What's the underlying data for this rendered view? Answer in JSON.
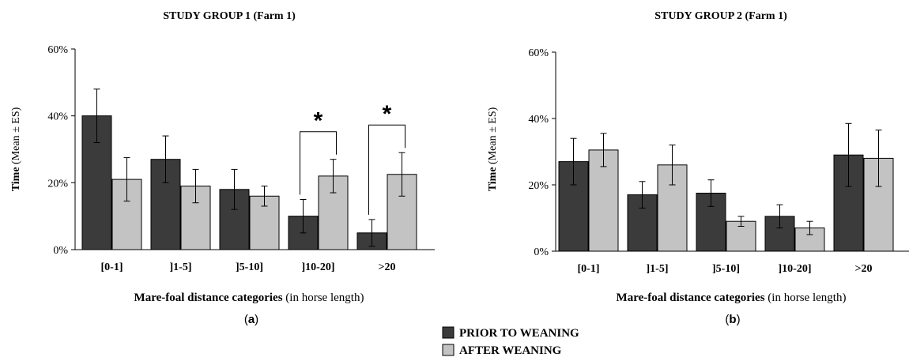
{
  "chart_data": [
    {
      "type": "bar",
      "title": "STUDY GROUP 1 (Farm 1)",
      "panel_label": "a",
      "ylabel_bold": "Time",
      "ylabel_rest": "(Mean ± ES)",
      "xlabel_bold": "Mare-foal distance categories",
      "xlabel_rest": "(in horse length)",
      "categories": [
        "[0-1]",
        "]1-5]",
        "]5-10]",
        "]10-20]",
        ">20"
      ],
      "yticks": [
        "0%",
        "20%",
        "40%",
        "60%"
      ],
      "ylim": [
        0,
        60
      ],
      "grid": false,
      "series": [
        {
          "name": "PRIOR TO WEANING",
          "values": [
            40,
            27,
            18,
            10,
            5
          ],
          "errors": [
            8,
            7,
            6,
            5,
            4
          ]
        },
        {
          "name": "AFTER WEANING",
          "values": [
            21,
            19,
            16,
            22,
            22.5
          ],
          "errors": [
            6.5,
            5,
            3,
            5,
            6.5
          ]
        }
      ],
      "significance": [
        {
          "category_index": 3,
          "label": "*"
        },
        {
          "category_index": 4,
          "label": "*"
        }
      ]
    },
    {
      "type": "bar",
      "title": "STUDY GROUP 2 (Farm 1)",
      "panel_label": "b",
      "ylabel_bold": "Time",
      "ylabel_rest": "(Mean ± ES)",
      "xlabel_bold": "Mare-foal distance categories",
      "xlabel_rest": "(in horse length)",
      "categories": [
        "[0-1]",
        "]1-5]",
        "]5-10]",
        "]10-20]",
        ">20"
      ],
      "yticks": [
        "0%",
        "20%",
        "40%",
        "60%"
      ],
      "ylim": [
        0,
        60
      ],
      "grid": false,
      "series": [
        {
          "name": "PRIOR TO WEANING",
          "values": [
            27,
            17,
            17.5,
            10.5,
            29
          ],
          "errors": [
            7,
            4,
            4,
            3.5,
            9.5
          ]
        },
        {
          "name": "AFTER WEANING",
          "values": [
            30.5,
            26,
            9,
            7,
            28
          ],
          "errors": [
            5,
            6,
            1.5,
            2,
            8.5
          ]
        }
      ],
      "significance": []
    }
  ],
  "legend": {
    "items": [
      {
        "label": "PRIOR TO WEANING",
        "color": "#3b3b3b"
      },
      {
        "label": "AFTER WEANING",
        "color": "#c3c3c3"
      }
    ]
  },
  "colors": {
    "prior": "#3b3b3b",
    "after": "#c3c3c3"
  }
}
